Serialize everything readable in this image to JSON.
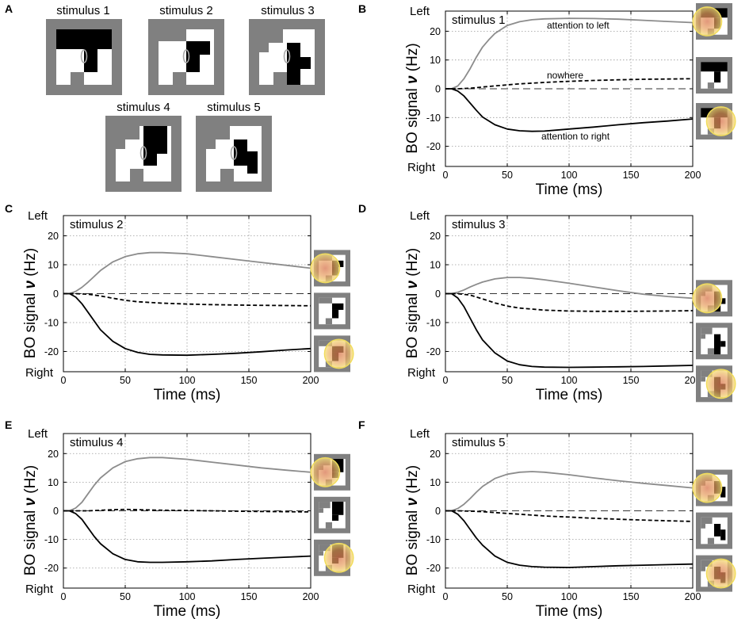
{
  "figure": {
    "stimuli_panel": {
      "letter": "A",
      "stimuli": [
        {
          "label": "stimulus 1"
        },
        {
          "label": "stimulus 2"
        },
        {
          "label": "stimulus 3"
        },
        {
          "label": "stimulus 4"
        },
        {
          "label": "stimulus 5"
        }
      ]
    },
    "axis_text": {
      "left": "Left",
      "right": "Right",
      "ylabel_prefix": "BO signal ",
      "ylabel_symbol": "ν",
      "ylabel_suffix": " (Hz)",
      "xlabel": "Time (ms)"
    }
  },
  "chart_data": [
    {
      "panel": "B",
      "type": "line",
      "stimulus": "stimulus 1",
      "title": "stimulus 1",
      "xlabel": "Time (ms)",
      "ylabel": "BO signal ν (Hz)",
      "xlim": [
        0,
        200
      ],
      "ylim": [
        -27,
        27
      ],
      "xticks": [
        0,
        50,
        100,
        150,
        200
      ],
      "yticks": [
        -20,
        -10,
        0,
        10,
        20
      ],
      "grid": true,
      "y_extreme_labels": {
        "top": "Left",
        "bottom": "Right"
      },
      "annotations": [
        "attention to left",
        "nowhere",
        "attention to right"
      ],
      "series": [
        {
          "name": "attention to left",
          "style": "gray-solid",
          "x": [
            0,
            5,
            10,
            15,
            20,
            25,
            30,
            35,
            40,
            50,
            60,
            70,
            80,
            100,
            120,
            140,
            160,
            180,
            200
          ],
          "values": [
            0,
            0,
            1,
            3.5,
            7,
            11,
            14.5,
            17,
            19.2,
            22,
            23.3,
            24,
            24.3,
            24.5,
            24.4,
            24.2,
            23.8,
            23.4,
            23
          ]
        },
        {
          "name": "nowhere",
          "style": "black-dashed",
          "x": [
            0,
            10,
            20,
            30,
            40,
            60,
            80,
            100,
            120,
            140,
            160,
            180,
            200
          ],
          "values": [
            0,
            0,
            0.2,
            0.6,
            1,
            1.7,
            2.2,
            2.6,
            2.9,
            3.1,
            3.3,
            3.4,
            3.5
          ]
        },
        {
          "name": "attention to right",
          "style": "black-solid",
          "x": [
            0,
            5,
            10,
            15,
            20,
            25,
            30,
            40,
            50,
            60,
            70,
            80,
            100,
            120,
            140,
            160,
            180,
            200
          ],
          "values": [
            0,
            0,
            -0.8,
            -2.5,
            -5,
            -7.5,
            -9.8,
            -12.5,
            -14,
            -14.6,
            -14.8,
            -14.7,
            -14,
            -13.3,
            -12.5,
            -11.8,
            -11.2,
            -10.5
          ]
        }
      ]
    },
    {
      "panel": "C",
      "type": "line",
      "stimulus": "stimulus 2",
      "title": "stimulus 2",
      "xlabel": "Time (ms)",
      "ylabel": "BO signal ν (Hz)",
      "xlim": [
        0,
        200
      ],
      "ylim": [
        -27,
        27
      ],
      "xticks": [
        0,
        50,
        100,
        150,
        200
      ],
      "yticks": [
        -20,
        -10,
        0,
        10,
        20
      ],
      "grid": true,
      "y_extreme_labels": {
        "top": "Left",
        "bottom": "Right"
      },
      "series": [
        {
          "name": "attention to left",
          "style": "gray-solid",
          "x": [
            0,
            5,
            10,
            15,
            20,
            25,
            30,
            40,
            50,
            60,
            70,
            80,
            100,
            120,
            140,
            160,
            180,
            200
          ],
          "values": [
            0,
            0,
            0.8,
            2.2,
            4,
            6,
            8,
            11,
            12.8,
            13.8,
            14.2,
            14.2,
            13.8,
            12.8,
            11.8,
            10.8,
            9.8,
            8.8
          ]
        },
        {
          "name": "nowhere",
          "style": "black-dashed",
          "x": [
            0,
            10,
            20,
            30,
            40,
            50,
            60,
            80,
            100,
            120,
            150,
            180,
            200
          ],
          "values": [
            0,
            0,
            -0.2,
            -0.8,
            -1.6,
            -2.3,
            -2.8,
            -3.3,
            -3.6,
            -3.8,
            -4,
            -4.1,
            -4.2
          ]
        },
        {
          "name": "attention to right",
          "style": "black-solid",
          "x": [
            0,
            5,
            10,
            15,
            20,
            25,
            30,
            40,
            50,
            60,
            70,
            80,
            100,
            120,
            140,
            160,
            180,
            200
          ],
          "values": [
            0,
            0,
            -1.2,
            -3.5,
            -6.5,
            -9.5,
            -12.5,
            -16.5,
            -19,
            -20.3,
            -21,
            -21.2,
            -21.3,
            -21,
            -20.6,
            -20.1,
            -19.5,
            -19
          ]
        }
      ]
    },
    {
      "panel": "D",
      "type": "line",
      "stimulus": "stimulus 3",
      "title": "stimulus 3",
      "xlabel": "Time (ms)",
      "ylabel": "BO signal ν (Hz)",
      "xlim": [
        0,
        200
      ],
      "ylim": [
        -27,
        27
      ],
      "xticks": [
        0,
        50,
        100,
        150,
        200
      ],
      "yticks": [
        -20,
        -10,
        0,
        10,
        20
      ],
      "grid": true,
      "y_extreme_labels": {
        "top": "Left",
        "bottom": "Right"
      },
      "series": [
        {
          "name": "attention to left",
          "style": "gray-solid",
          "x": [
            0,
            5,
            10,
            15,
            20,
            25,
            30,
            40,
            50,
            60,
            70,
            80,
            100,
            120,
            140,
            160,
            180,
            200
          ],
          "values": [
            0,
            0,
            0.5,
            1.3,
            2.3,
            3.2,
            4,
            5.1,
            5.6,
            5.6,
            5.3,
            4.8,
            3.6,
            2.3,
            1,
            -0.2,
            -1,
            -1.6
          ]
        },
        {
          "name": "nowhere",
          "style": "black-dashed",
          "x": [
            0,
            10,
            20,
            30,
            40,
            50,
            60,
            80,
            100,
            120,
            150,
            180,
            200
          ],
          "values": [
            0,
            0,
            -0.5,
            -1.8,
            -3.2,
            -4.3,
            -5,
            -5.7,
            -6,
            -6.1,
            -6.1,
            -6,
            -5.9
          ]
        },
        {
          "name": "attention to right",
          "style": "black-solid",
          "x": [
            0,
            5,
            10,
            15,
            20,
            25,
            30,
            40,
            50,
            60,
            70,
            80,
            100,
            120,
            140,
            160,
            180,
            200
          ],
          "values": [
            0,
            0,
            -1.5,
            -4.5,
            -8.5,
            -12.5,
            -16,
            -20.5,
            -23.3,
            -24.6,
            -25.2,
            -25.4,
            -25.5,
            -25.4,
            -25.3,
            -25.2,
            -25,
            -24.8
          ]
        }
      ]
    },
    {
      "panel": "E",
      "type": "line",
      "stimulus": "stimulus 4",
      "title": "stimulus 4",
      "xlabel": "Time (ms)",
      "ylabel": "BO signal ν (Hz)",
      "xlim": [
        0,
        200
      ],
      "ylim": [
        -27,
        27
      ],
      "xticks": [
        0,
        50,
        100,
        150,
        200
      ],
      "yticks": [
        -20,
        -10,
        0,
        10,
        20
      ],
      "grid": true,
      "y_extreme_labels": {
        "top": "Left",
        "bottom": "Right"
      },
      "series": [
        {
          "name": "attention to left",
          "style": "gray-solid",
          "x": [
            0,
            5,
            10,
            15,
            20,
            25,
            30,
            40,
            50,
            60,
            70,
            80,
            100,
            120,
            140,
            160,
            180,
            200
          ],
          "values": [
            0,
            0,
            1,
            3,
            6,
            9,
            11.5,
            15,
            17.2,
            18.2,
            18.6,
            18.6,
            18,
            17,
            16,
            15,
            14.2,
            13.5
          ]
        },
        {
          "name": "nowhere",
          "style": "black-dashed",
          "x": [
            0,
            10,
            20,
            30,
            40,
            50,
            60,
            80,
            100,
            120,
            150,
            180,
            200
          ],
          "values": [
            0,
            0,
            0,
            0.2,
            0.4,
            0.5,
            0.4,
            0.2,
            0.1,
            0,
            -0.2,
            -0.3,
            -0.4
          ]
        },
        {
          "name": "attention to right",
          "style": "black-solid",
          "x": [
            0,
            5,
            10,
            15,
            20,
            25,
            30,
            40,
            50,
            60,
            70,
            80,
            100,
            120,
            140,
            160,
            180,
            200
          ],
          "values": [
            0,
            0,
            -1,
            -3,
            -6,
            -9,
            -11.5,
            -15,
            -17,
            -17.8,
            -18,
            -18,
            -17.8,
            -17.5,
            -17,
            -16.6,
            -16.2,
            -15.8
          ]
        }
      ]
    },
    {
      "panel": "F",
      "type": "line",
      "stimulus": "stimulus 5",
      "title": "stimulus 5",
      "xlabel": "Time (ms)",
      "ylabel": "BO signal ν (Hz)",
      "xlim": [
        0,
        200
      ],
      "ylim": [
        -27,
        27
      ],
      "xticks": [
        0,
        50,
        100,
        150,
        200
      ],
      "yticks": [
        -20,
        -10,
        0,
        10,
        20
      ],
      "grid": true,
      "y_extreme_labels": {
        "top": "Left",
        "bottom": "Right"
      },
      "series": [
        {
          "name": "attention to left",
          "style": "gray-solid",
          "x": [
            0,
            5,
            10,
            15,
            20,
            25,
            30,
            40,
            50,
            60,
            70,
            80,
            100,
            120,
            140,
            160,
            180,
            200
          ],
          "values": [
            0,
            0,
            0.8,
            2.3,
            4.3,
            6.5,
            8.5,
            11.3,
            12.8,
            13.5,
            13.7,
            13.5,
            12.6,
            11.5,
            10.5,
            9.6,
            8.8,
            8
          ]
        },
        {
          "name": "nowhere",
          "style": "black-dashed",
          "x": [
            0,
            10,
            20,
            30,
            40,
            50,
            60,
            80,
            100,
            120,
            150,
            180,
            200
          ],
          "values": [
            0,
            0,
            -0.1,
            -0.3,
            -0.6,
            -0.9,
            -1.2,
            -1.8,
            -2.2,
            -2.6,
            -3.1,
            -3.5,
            -3.7
          ]
        },
        {
          "name": "attention to right",
          "style": "black-solid",
          "x": [
            0,
            5,
            10,
            15,
            20,
            25,
            30,
            40,
            50,
            60,
            70,
            80,
            100,
            120,
            140,
            160,
            180,
            200
          ],
          "values": [
            0,
            0,
            -1.2,
            -3.5,
            -6.5,
            -9.5,
            -12,
            -15.8,
            -18,
            -19,
            -19.5,
            -19.7,
            -19.8,
            -19.5,
            -19.2,
            -19,
            -18.8,
            -18.6
          ]
        }
      ]
    }
  ]
}
